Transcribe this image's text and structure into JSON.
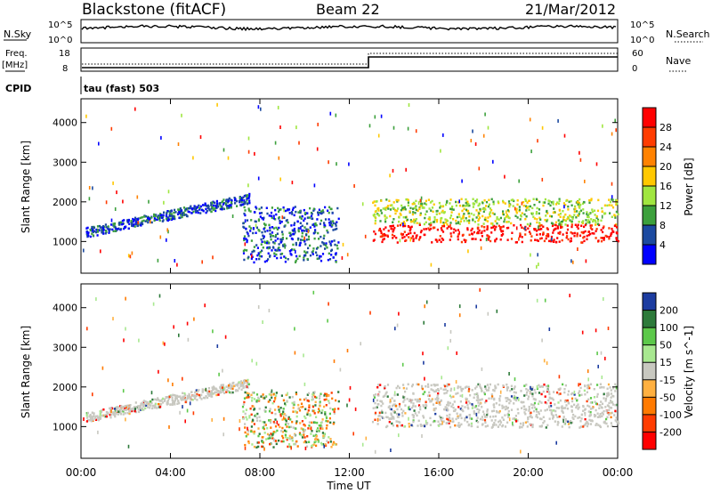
{
  "header": {
    "title": "Blackstone (fitACF)",
    "beam": "Beam 22",
    "date": "21/Mar/2012"
  },
  "top_panels": {
    "nsky_label": "N.Sky",
    "nsearch_label": "N.Search",
    "nsky_ticks": [
      "10^5",
      "10^0"
    ],
    "nsearch_ticks": [
      "10^5",
      "10^0"
    ],
    "freq_label": "Freq.",
    "freq_unit": "[MHz]",
    "freq_ticks": [
      "18",
      "8"
    ],
    "nave_label": "Nave",
    "nave_ticks": [
      "60",
      "0"
    ],
    "cpid_label": "CPID",
    "cpid_text": "tau (fast) 503"
  },
  "chart_data": [
    {
      "type": "heatmap",
      "name": "power",
      "ylabel": "Slant Range [km]",
      "yticks": [
        1000,
        2000,
        3000,
        4000
      ],
      "ylim": [
        200,
        4600
      ],
      "xlim": [
        0,
        24
      ],
      "colorbar": {
        "label": "Power [dB]",
        "ticks": [
          "28",
          "24",
          "20",
          "16",
          "12",
          "8",
          "4"
        ],
        "colors": [
          "#ff0000",
          "#ff3c00",
          "#ff8200",
          "#ffc800",
          "#a0e640",
          "#3ca03c",
          "#1c4aa0",
          "#0000ff"
        ]
      },
      "regions": [
        {
          "desc": "sloped echo band",
          "t0": 0.2,
          "t1": 7.5,
          "r0": 1250,
          "r1": 2100,
          "level": "medium-low"
        },
        {
          "desc": "broad scatter 07-12 UT",
          "t0": 7.2,
          "t1": 11.5,
          "r0": 500,
          "r1": 1900,
          "level": "low"
        },
        {
          "desc": "ionospheric scatter 13-24 UT",
          "t0": 13,
          "t1": 24,
          "r0": 1000,
          "r1": 2100,
          "level": "high"
        }
      ]
    },
    {
      "type": "heatmap",
      "name": "velocity",
      "ylabel": "Slant Range [km]",
      "yticks": [
        1000,
        2000,
        3000,
        4000
      ],
      "ylim": [
        200,
        4600
      ],
      "xlim": [
        0,
        24
      ],
      "xticks": [
        "00:00",
        "04:00",
        "08:00",
        "12:00",
        "16:00",
        "20:00",
        "00:00"
      ],
      "xlabel": "Time UT",
      "colorbar": {
        "label": "Velocity [m s^-1]",
        "ticks": [
          "200",
          "100",
          "50",
          "15",
          "-15",
          "-50",
          "-100",
          "-200"
        ],
        "colors": [
          "#1c3ca0",
          "#2d7a3a",
          "#5cc84a",
          "#a8e890",
          "#c8c8c0",
          "#ffb040",
          "#ff7a00",
          "#ff3c00",
          "#ff0000"
        ]
      },
      "regions": [
        {
          "desc": "ground scatter band",
          "t0": 0.2,
          "t1": 7.5,
          "r0": 1250,
          "r1": 2100,
          "level": "near-zero"
        },
        {
          "desc": "mixed scatter 07-12 UT",
          "t0": 7.2,
          "t1": 11.5,
          "r0": 500,
          "r1": 1900,
          "level": "mixed"
        },
        {
          "desc": "grey ground scatter 13-24 UT",
          "t0": 13,
          "t1": 24,
          "r0": 1000,
          "r1": 2100,
          "level": "near-zero"
        }
      ]
    }
  ]
}
